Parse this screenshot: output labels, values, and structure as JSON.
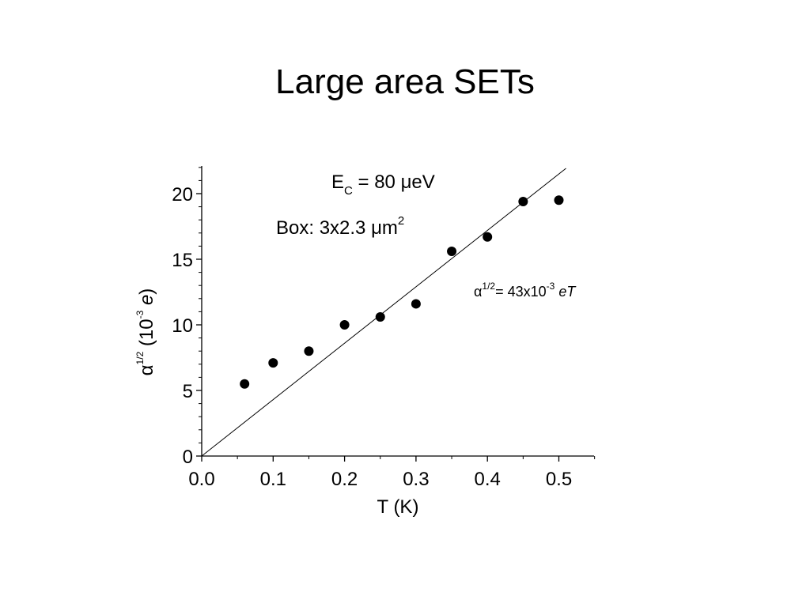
{
  "slide": {
    "title": "Large area SETs"
  },
  "chart_data": {
    "type": "scatter",
    "title": "",
    "xlabel": "T (K)",
    "ylabel": "α1/2 (10-3 e)",
    "ylabel_parts": {
      "alpha": "α",
      "exp": "1/2",
      "open": " (10",
      "pexp": "-3",
      "unit": "e",
      "close": ")"
    },
    "xlim": [
      0.0,
      0.55
    ],
    "ylim": [
      0,
      22
    ],
    "x_ticks": [
      0.0,
      0.1,
      0.2,
      0.3,
      0.4,
      0.5
    ],
    "x_tick_labels": [
      "0.0",
      "0.1",
      "0.2",
      "0.3",
      "0.4",
      "0.5"
    ],
    "y_ticks": [
      0,
      5,
      10,
      15,
      20
    ],
    "y_tick_labels": [
      "0",
      "5",
      "10",
      "15",
      "20"
    ],
    "grid": false,
    "series": [
      {
        "marker": "filled-circle",
        "color": "#000000",
        "x": [
          0.06,
          0.1,
          0.15,
          0.2,
          0.25,
          0.3,
          0.35,
          0.4,
          0.45,
          0.5
        ],
        "y": [
          5.5,
          7.1,
          8.0,
          10.0,
          10.6,
          11.6,
          15.6,
          16.7,
          19.4,
          19.5
        ]
      }
    ],
    "fit_line": {
      "slope": 43,
      "intercept": 0,
      "x_range": [
        0.0,
        0.51
      ],
      "color": "#000000"
    },
    "annotations": {
      "ec": {
        "base": "E",
        "sub": "C",
        "rest": " = 80 μeV"
      },
      "box": {
        "base": "Box: 3x2.3 μm",
        "sup": "2"
      },
      "fit": {
        "alpha": "α",
        "exp": "1/2",
        "eq": "= 43x10",
        "pexp": "-3",
        "var": "eT"
      }
    }
  }
}
